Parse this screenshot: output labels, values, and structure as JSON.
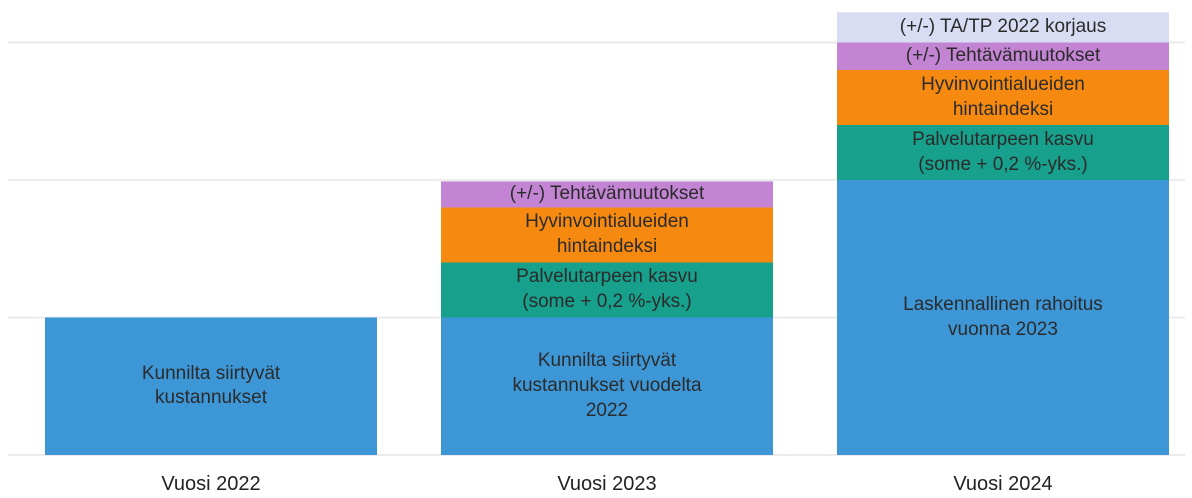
{
  "chart_data": {
    "type": "stacked_bar",
    "categories": [
      "Vuosi 2022",
      "Vuosi 2023",
      "Vuosi 2024"
    ],
    "series": [
      {
        "color": "#3d97d7",
        "values": [
          1.0,
          1.0,
          2.0
        ],
        "labels": [
          "Kunnilta siirtyvät\nkustannukset",
          "Kunnilta siirtyvät\nkustannukset vuodelta\n2022",
          "Laskennallinen rahoitus\nvuonna 2023"
        ]
      },
      {
        "color": "#17a08b",
        "values": [
          null,
          0.4,
          0.4
        ],
        "labels": [
          null,
          "Palvelutarpeen kasvu\n(some + 0,2 %-yks.)",
          "Palvelutarpeen kasvu\n(some + 0,2 %-yks.)"
        ]
      },
      {
        "color": "#f68a10",
        "values": [
          null,
          0.4,
          0.4
        ],
        "labels": [
          null,
          "Hyvinvointialueiden\nhintaindeksi",
          "Hyvinvointialueiden\nhintaindeksi"
        ]
      },
      {
        "color": "#c384d4",
        "values": [
          null,
          0.19,
          0.2
        ],
        "labels": [
          null,
          "(+/-) Tehtävämuutokset",
          "(+/-) Tehtävämuutokset"
        ]
      },
      {
        "color": "#d8ddf3",
        "values": [
          null,
          null,
          0.22
        ],
        "labels": [
          null,
          null,
          "(+/-) TA/TP 2022 korjaus"
        ]
      }
    ],
    "ylim": [
      0,
      3.3
    ],
    "yticks": [
      0,
      1,
      2,
      3
    ],
    "grid": true
  }
}
